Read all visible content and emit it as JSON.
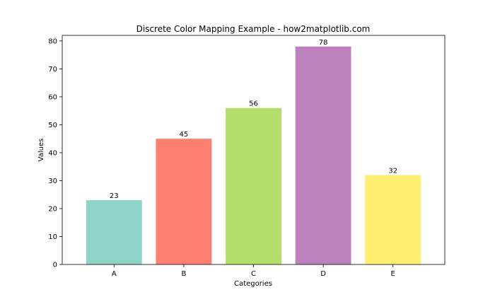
{
  "chart_data": {
    "type": "bar",
    "title": "Discrete Color Mapping Example - how2matplotlib.com",
    "xlabel": "Categories",
    "ylabel": "Values",
    "categories": [
      "A",
      "B",
      "C",
      "D",
      "E"
    ],
    "values": [
      23,
      45,
      56,
      78,
      32
    ],
    "colors": [
      "#8dd3c7",
      "#fb8072",
      "#b3de69",
      "#bc80bd",
      "#ffed6f"
    ],
    "ylim": [
      0,
      82
    ],
    "yticks": [
      0,
      10,
      20,
      30,
      40,
      50,
      60,
      70,
      80
    ],
    "grid": false,
    "legend": "none",
    "data_labels": true
  }
}
